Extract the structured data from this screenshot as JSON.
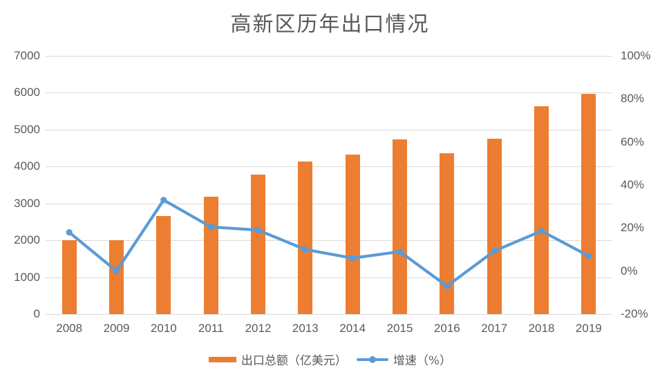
{
  "title": "高新区历年出口情况",
  "colors": {
    "bar": "#ED7D31",
    "line": "#5B9BD5",
    "grid": "#D9D9D9",
    "text": "#595959"
  },
  "legend": {
    "bar_label": "出口总额（亿美元）",
    "line_label": "增速（%）"
  },
  "chart_data": {
    "type": "combo-bar-line",
    "title": "高新区历年出口情况",
    "categories": [
      "2008",
      "2009",
      "2010",
      "2011",
      "2012",
      "2013",
      "2014",
      "2015",
      "2016",
      "2017",
      "2018",
      "2019"
    ],
    "series": [
      {
        "name": "出口总额（亿美元）",
        "type": "bar",
        "axis": "left",
        "color": "#ED7D31",
        "values": [
          2000,
          2000,
          2650,
          3190,
          3780,
          4130,
          4330,
          4730,
          4370,
          4760,
          5630,
          5980
        ]
      },
      {
        "name": "增速（%）",
        "type": "line",
        "axis": "right",
        "color": "#5B9BD5",
        "marker": "circle",
        "values": [
          18,
          0,
          33,
          20.5,
          19,
          10,
          6,
          9,
          -7,
          9.3,
          18.6,
          7
        ]
      }
    ],
    "left_axis": {
      "min": 0,
      "max": 7000,
      "step": 1000,
      "ticks": [
        "7000",
        "6000",
        "5000",
        "4000",
        "3000",
        "2000",
        "1000",
        "0"
      ]
    },
    "right_axis": {
      "min": -20,
      "max": 100,
      "step": 20,
      "ticks": [
        "100%",
        "80%",
        "60%",
        "40%",
        "20%",
        "0%",
        "-20%"
      ]
    },
    "grid": true,
    "legend_position": "bottom"
  }
}
